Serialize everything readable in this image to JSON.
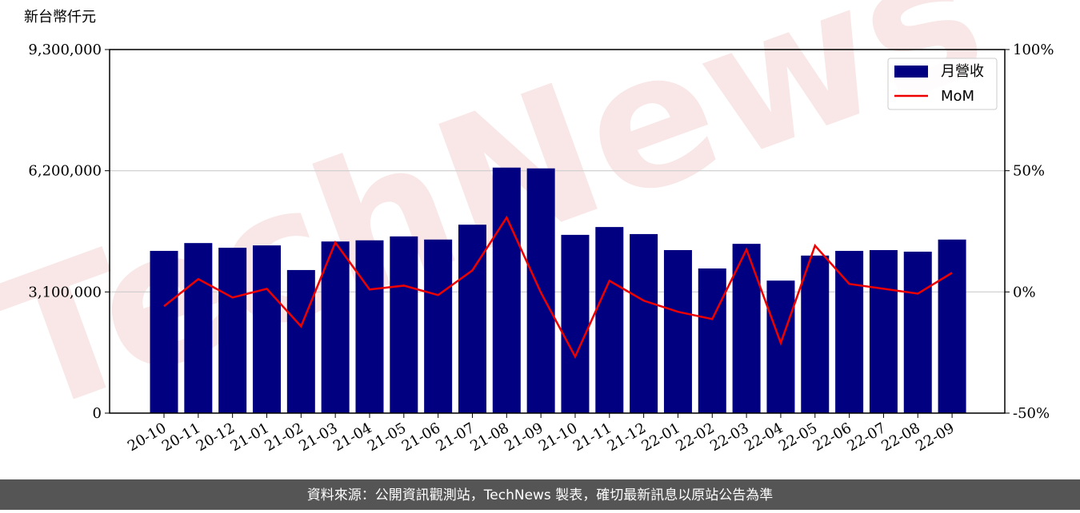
{
  "chart_data": {
    "type": "bar-line",
    "y_label": "新台幣仟元",
    "watermark": "TechNews",
    "source": "資料來源：公開資訊觀測站，TechNews 製表，確切最新訊息以原站公告為準",
    "categories": [
      "20-10",
      "20-11",
      "20-12",
      "21-01",
      "21-02",
      "21-03",
      "21-04",
      "21-05",
      "21-06",
      "21-07",
      "21-08",
      "21-09",
      "21-10",
      "21-11",
      "21-12",
      "22-01",
      "22-02",
      "22-03",
      "22-04",
      "22-05",
      "22-06",
      "22-07",
      "22-08",
      "22-09"
    ],
    "series": [
      {
        "name": "月營收",
        "color": "#000080",
        "type": "bar",
        "values": [
          4150000,
          4350000,
          4230000,
          4290000,
          3660000,
          4390000,
          4420000,
          4520000,
          4440000,
          4820000,
          6280000,
          6260000,
          4560000,
          4760000,
          4580000,
          4170000,
          3700000,
          4330000,
          3390000,
          4030000,
          4150000,
          4170000,
          4130000,
          4440000
        ]
      },
      {
        "name": "MoM",
        "color": "#ee0000",
        "type": "line",
        "axis": "y2",
        "values": [
          -5.9,
          5.3,
          -2.3,
          1.3,
          -14.2,
          20.4,
          1.0,
          2.6,
          -1.3,
          8.9,
          30.7,
          -0.3,
          -26.7,
          4.6,
          -3.6,
          -8.2,
          -11.2,
          17.5,
          -21.1,
          19.1,
          3.3,
          1.3,
          -0.7,
          7.9
        ]
      }
    ],
    "ylim": [
      0,
      9300000
    ],
    "yticks": [
      0,
      {
        "value": 3100000,
        "label": "3,100,000"
      },
      {
        "value": 6200000,
        "label": "6,200,000"
      },
      {
        "value": 9300000,
        "label": "9,300,000"
      }
    ],
    "y2lim": [
      -50,
      100
    ],
    "y2ticks": [
      {
        "value": -50,
        "label": "-50%"
      },
      {
        "value": 0,
        "label": "0%"
      },
      {
        "value": 50,
        "label": "50%"
      },
      {
        "value": 100,
        "label": "100%"
      }
    ],
    "grid": true,
    "legend": "upper right"
  }
}
